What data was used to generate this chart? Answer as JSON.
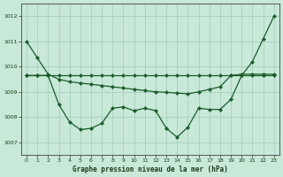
{
  "title": "Graphe pression niveau de la mer (hPa)",
  "background_color": "#c8e8d8",
  "grid_color": "#a0ccb8",
  "line_color": "#1a5c2a",
  "xlim": [
    -0.5,
    23.5
  ],
  "ylim": [
    1006.5,
    1012.5
  ],
  "yticks": [
    1007,
    1008,
    1009,
    1010,
    1011,
    1012
  ],
  "xticks": [
    0,
    1,
    2,
    3,
    4,
    5,
    6,
    7,
    8,
    9,
    10,
    11,
    12,
    13,
    14,
    15,
    16,
    17,
    18,
    19,
    20,
    21,
    22,
    23
  ],
  "line_a_x": [
    0,
    1,
    2,
    3,
    4,
    5,
    6,
    7,
    8,
    9,
    10,
    11,
    12,
    13,
    14,
    15,
    16,
    17,
    18,
    19,
    20,
    21,
    22,
    23
  ],
  "line_a_y": [
    1011.0,
    1010.35,
    1009.7,
    1009.5,
    1009.4,
    1009.35,
    1009.3,
    1009.25,
    1009.2,
    1009.15,
    1009.1,
    1009.05,
    1009.0,
    1008.98,
    1008.95,
    1008.92,
    1009.0,
    1009.1,
    1009.2,
    1009.65,
    1009.7,
    1009.7,
    1009.7,
    1009.7
  ],
  "line_b_x": [
    0,
    1,
    2,
    3,
    4,
    5,
    6,
    7,
    8,
    9,
    10,
    11,
    12,
    13,
    14,
    15,
    16,
    17,
    18,
    19,
    20,
    21,
    22,
    23
  ],
  "line_b_y": [
    1009.65,
    1009.65,
    1009.65,
    1009.65,
    1009.65,
    1009.65,
    1009.65,
    1009.65,
    1009.65,
    1009.65,
    1009.65,
    1009.65,
    1009.65,
    1009.65,
    1009.65,
    1009.65,
    1009.65,
    1009.65,
    1009.65,
    1009.65,
    1009.65,
    1009.65,
    1009.65,
    1009.65
  ],
  "line_c_x": [
    0,
    1,
    2,
    3,
    4,
    5,
    6,
    7,
    8,
    9,
    10,
    11,
    12,
    13,
    14,
    15,
    16,
    17,
    18,
    19,
    20,
    21,
    22,
    23
  ],
  "line_c_y": [
    1009.65,
    1009.65,
    1009.65,
    1008.5,
    1007.8,
    1007.5,
    1007.55,
    1007.75,
    1008.35,
    1008.4,
    1008.25,
    1008.35,
    1008.25,
    1007.55,
    1007.2,
    1007.6,
    1008.35,
    1008.3,
    1008.3,
    1008.7,
    1009.65,
    1010.2,
    1011.1,
    1012.0
  ]
}
